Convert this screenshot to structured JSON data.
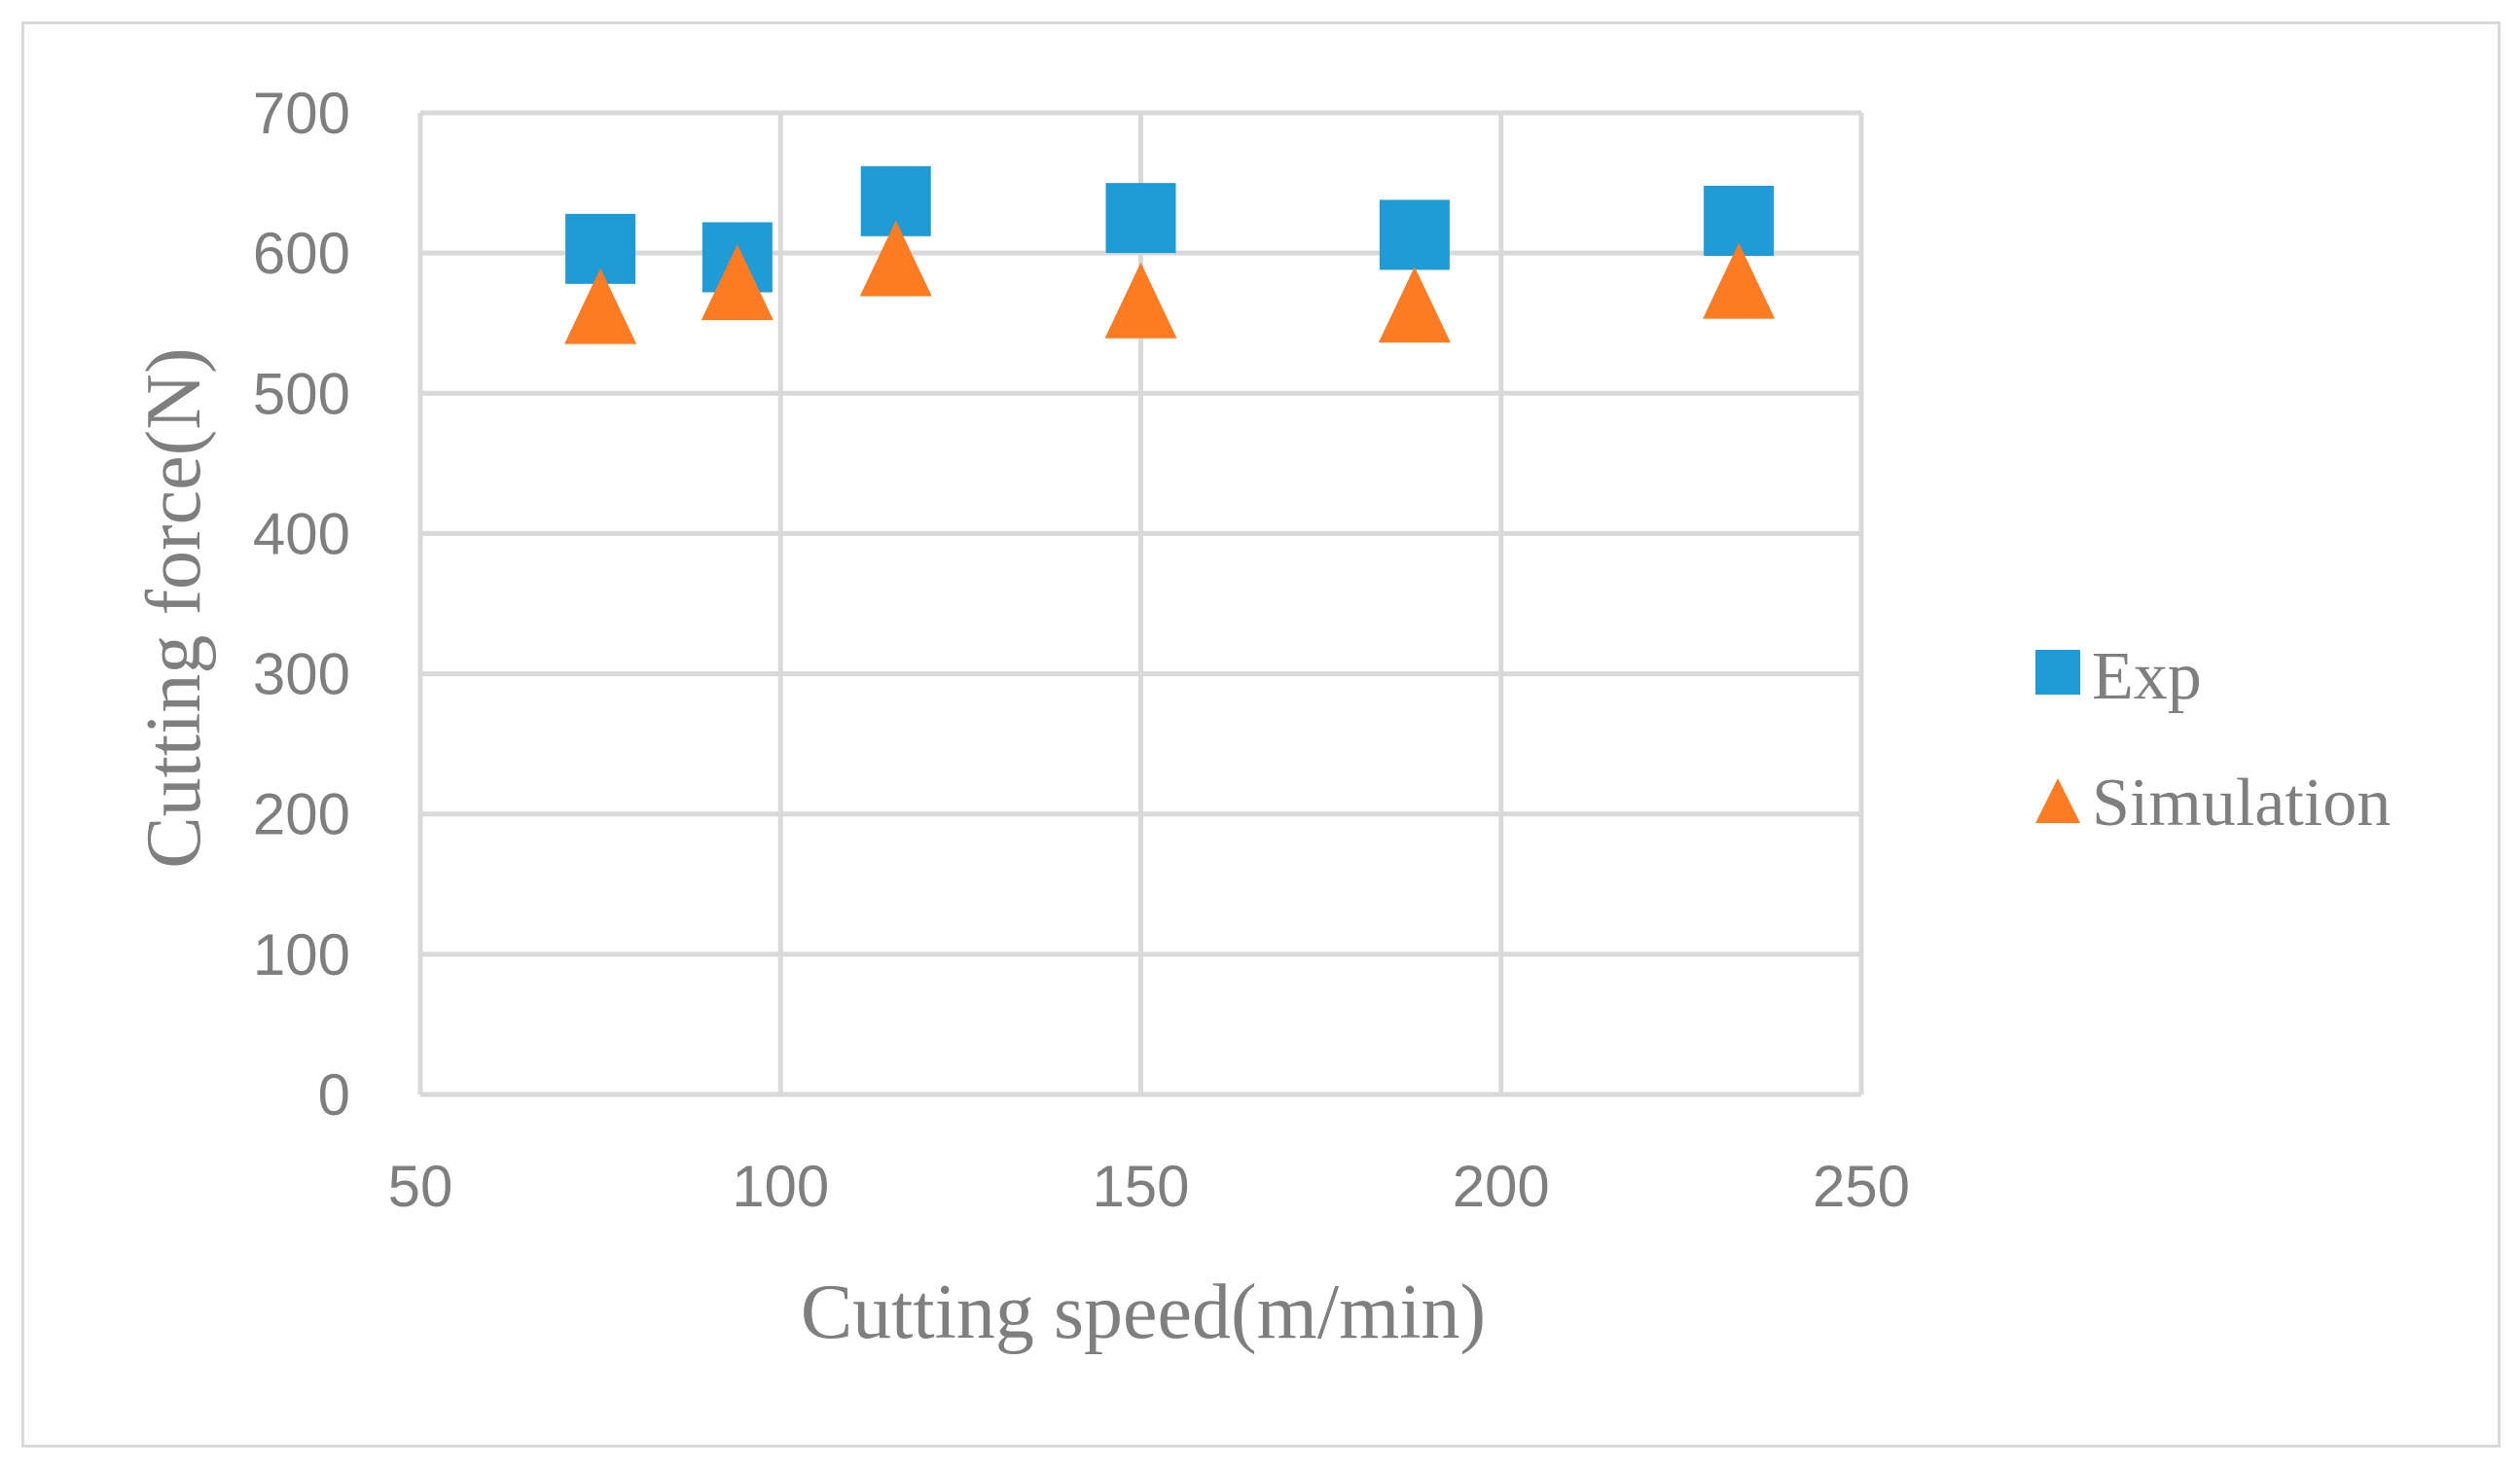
{
  "chart_data": {
    "type": "scatter",
    "xlabel": "Cutting speed(m/min)",
    "ylabel": "Cutting force(N)",
    "xlim": [
      50,
      250
    ],
    "ylim": [
      0,
      700
    ],
    "x_ticks": [
      50,
      100,
      150,
      200,
      250
    ],
    "y_ticks": [
      0,
      100,
      200,
      300,
      400,
      500,
      600,
      700
    ],
    "grid": true,
    "legend_position": "right",
    "series": [
      {
        "name": "Exp",
        "marker": "square",
        "color": "#1f9bd7",
        "x": [
          75,
          94,
          116,
          150,
          188,
          233
        ],
        "y": [
          603,
          597,
          637,
          625,
          613,
          623
        ]
      },
      {
        "name": "Simulation",
        "marker": "triangle",
        "color": "#fd7b22",
        "x": [
          75,
          94,
          116,
          150,
          188,
          233
        ],
        "y": [
          556,
          573,
          590,
          560,
          557,
          574
        ]
      }
    ]
  }
}
